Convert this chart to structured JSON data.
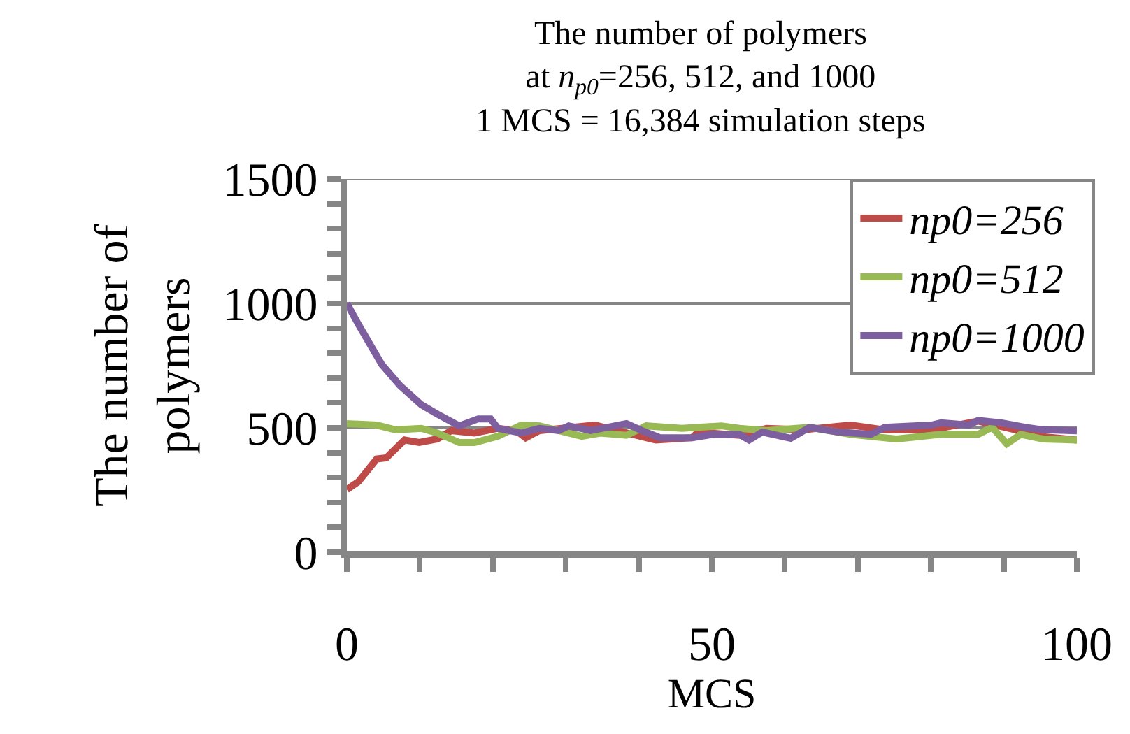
{
  "chart_data": {
    "type": "line",
    "title": "The number of polymers\nat n$_{p0}$=256, 512, and 1000\n1 MCS = 16,384 simulation steps",
    "xlabel": "MCS",
    "ylabel": "The number of\npolymers",
    "xlim": [
      0,
      100
    ],
    "ylim": [
      0,
      1500
    ],
    "xticks": [
      0,
      {
        "value": 10,
        "label": null
      },
      {
        "value": 20,
        "label": null
      },
      {
        "value": 30,
        "label": null
      },
      {
        "value": 40,
        "label": null
      },
      50,
      {
        "value": 60,
        "label": null
      },
      {
        "value": 70,
        "label": null
      },
      {
        "value": 80,
        "label": null
      },
      {
        "value": 90,
        "label": null
      },
      100
    ],
    "yticks": [
      0,
      {
        "value": 100,
        "label": null
      },
      {
        "value": 200,
        "label": null
      },
      {
        "value": 300,
        "label": null
      },
      {
        "value": 400,
        "label": null
      },
      500,
      {
        "value": 600,
        "label": null
      },
      {
        "value": 700,
        "label": null
      },
      {
        "value": 800,
        "label": null
      },
      {
        "value": 900,
        "label": null
      },
      1000,
      {
        "value": 1100,
        "label": null
      },
      {
        "value": 1200,
        "label": null
      },
      {
        "value": 1300,
        "label": null
      },
      {
        "value": 1400,
        "label": null
      },
      1500
    ],
    "grid": "y",
    "legend": "top right",
    "marker": "none",
    "line_style": "solid",
    "series": [
      {
        "name": "np0=256",
        "color": "#be4b48",
        "x": [
          0,
          1.6,
          4.1,
          5.4,
          7.9,
          9.9,
          12.4,
          14.3,
          17.5,
          20.7,
          23.2,
          24.5,
          26.4,
          34,
          41,
          42.3,
          47.3,
          48.1,
          53.8,
          57.5,
          62.6,
          69,
          73.7,
          80.1,
          86.5,
          91.6,
          95.4,
          100
        ],
        "values": [
          252,
          284,
          375,
          379,
          451,
          441,
          455,
          489,
          479,
          498,
          489,
          460,
          489,
          511,
          460,
          451,
          460,
          483,
          470,
          498,
          492,
          511,
          492,
          492,
          527,
          492,
          464,
          451
        ]
      },
      {
        "name": "np0=512",
        "color": "#98b954",
        "x": [
          0,
          4.1,
          6.7,
          10.2,
          12.4,
          15.4,
          17.5,
          20.7,
          23.9,
          26.4,
          29,
          32.2,
          34.7,
          38.3,
          41,
          45.9,
          51.3,
          53.8,
          57.5,
          63.4,
          69,
          75.3,
          81.4,
          86.5,
          88.4,
          90.4,
          92.3,
          95.4,
          100
        ],
        "values": [
          517,
          511,
          492,
          498,
          479,
          441,
          441,
          466,
          511,
          508,
          489,
          466,
          479,
          470,
          508,
          498,
          508,
          498,
          489,
          502,
          474,
          455,
          474,
          474,
          502,
          436,
          474,
          455,
          451
        ]
      },
      {
        "name": "np0=1000",
        "color": "#7d5fa0",
        "x": [
          0,
          1.6,
          4.8,
          7.3,
          10.2,
          12.4,
          15.4,
          18,
          19.7,
          20.7,
          23.9,
          26.4,
          29,
          30.4,
          33.4,
          38.3,
          40.4,
          42.9,
          47.3,
          50,
          53.8,
          55.1,
          56.9,
          60.8,
          63.4,
          67.3,
          71.8,
          73.7,
          80.1,
          81.4,
          85.2,
          86.5,
          89.7,
          92.9,
          95.4,
          100
        ],
        "values": [
          1000,
          915,
          754,
          669,
          593,
          555,
          508,
          536,
          536,
          498,
          479,
          498,
          489,
          508,
          489,
          517,
          489,
          460,
          460,
          473,
          473,
          451,
          483,
          458,
          502,
          483,
          474,
          502,
          511,
          520,
          511,
          530,
          520,
          502,
          492,
          488
        ]
      }
    ]
  }
}
